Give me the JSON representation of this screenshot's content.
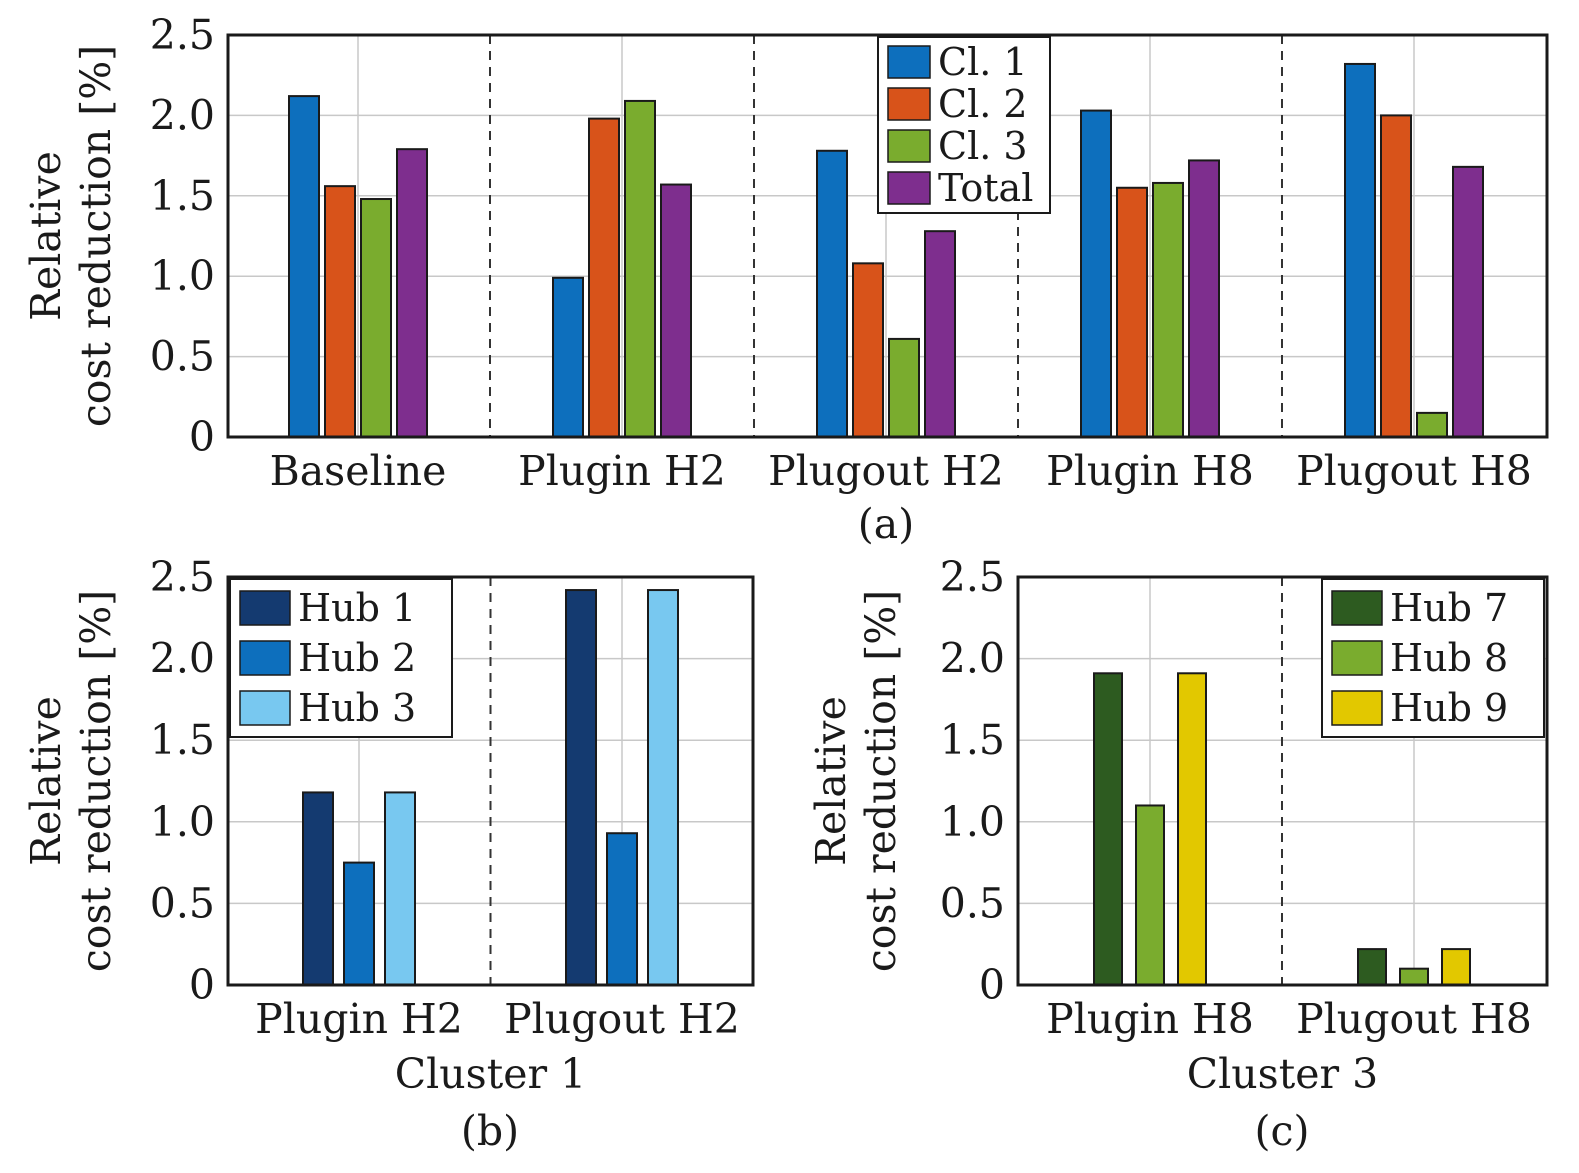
{
  "chart_data": [
    {
      "type": "bar",
      "caption": "(a)",
      "xlabel": "",
      "ylabel_lines": [
        "Relative",
        "cost reduction [%]"
      ],
      "ylim": [
        0,
        2.5
      ],
      "yticks": [
        "0",
        "0.5",
        "1.0",
        "1.5",
        "2.0",
        "2.5"
      ],
      "grid": true,
      "legend_position": "top-right",
      "categories": [
        "Baseline",
        "Plugin H2",
        "Plugout H2",
        "Plugin H8",
        "Plugout H8"
      ],
      "series": [
        {
          "name": "Cl. 1",
          "color": "#0d6fbd",
          "values": [
            2.12,
            0.99,
            1.78,
            2.03,
            2.32
          ]
        },
        {
          "name": "Cl. 2",
          "color": "#d8531a",
          "values": [
            1.56,
            1.98,
            1.08,
            1.55,
            2.0
          ]
        },
        {
          "name": "Cl. 3",
          "color": "#7aac2e",
          "values": [
            1.48,
            2.09,
            0.61,
            1.58,
            0.15
          ]
        },
        {
          "name": "Total",
          "color": "#7e2e8e",
          "values": [
            1.79,
            1.57,
            1.28,
            1.72,
            1.68
          ]
        }
      ]
    },
    {
      "type": "bar",
      "caption": "(b)",
      "xlabel": "Cluster 1",
      "ylabel_lines": [
        "Relative",
        "cost reduction [%]"
      ],
      "ylim": [
        0,
        2.5
      ],
      "yticks": [
        "0",
        "0.5",
        "1.0",
        "1.5",
        "2.0",
        "2.5"
      ],
      "grid": true,
      "legend_position": "top-left",
      "categories": [
        "Plugin H2",
        "Plugout H2"
      ],
      "series": [
        {
          "name": "Hub 1",
          "color": "#143a70",
          "values": [
            1.18,
            2.42
          ]
        },
        {
          "name": "Hub 2",
          "color": "#0d6fbd",
          "values": [
            0.75,
            0.93
          ]
        },
        {
          "name": "Hub 3",
          "color": "#78c8f0",
          "values": [
            1.18,
            2.42
          ]
        }
      ]
    },
    {
      "type": "bar",
      "caption": "(c)",
      "xlabel": "Cluster 3",
      "ylabel_lines": [
        "Relative",
        "cost reduction [%]"
      ],
      "ylim": [
        0,
        2.5
      ],
      "yticks": [
        "0",
        "0.5",
        "1.0",
        "1.5",
        "2.0",
        "2.5"
      ],
      "grid": true,
      "legend_position": "top-right",
      "categories": [
        "Plugin H8",
        "Plugout H8"
      ],
      "series": [
        {
          "name": "Hub 7",
          "color": "#2d5b20",
          "values": [
            1.91,
            0.22
          ]
        },
        {
          "name": "Hub 8",
          "color": "#7aac2e",
          "values": [
            1.1,
            0.1
          ]
        },
        {
          "name": "Hub 9",
          "color": "#e2c800",
          "values": [
            1.91,
            0.22
          ]
        }
      ]
    }
  ]
}
